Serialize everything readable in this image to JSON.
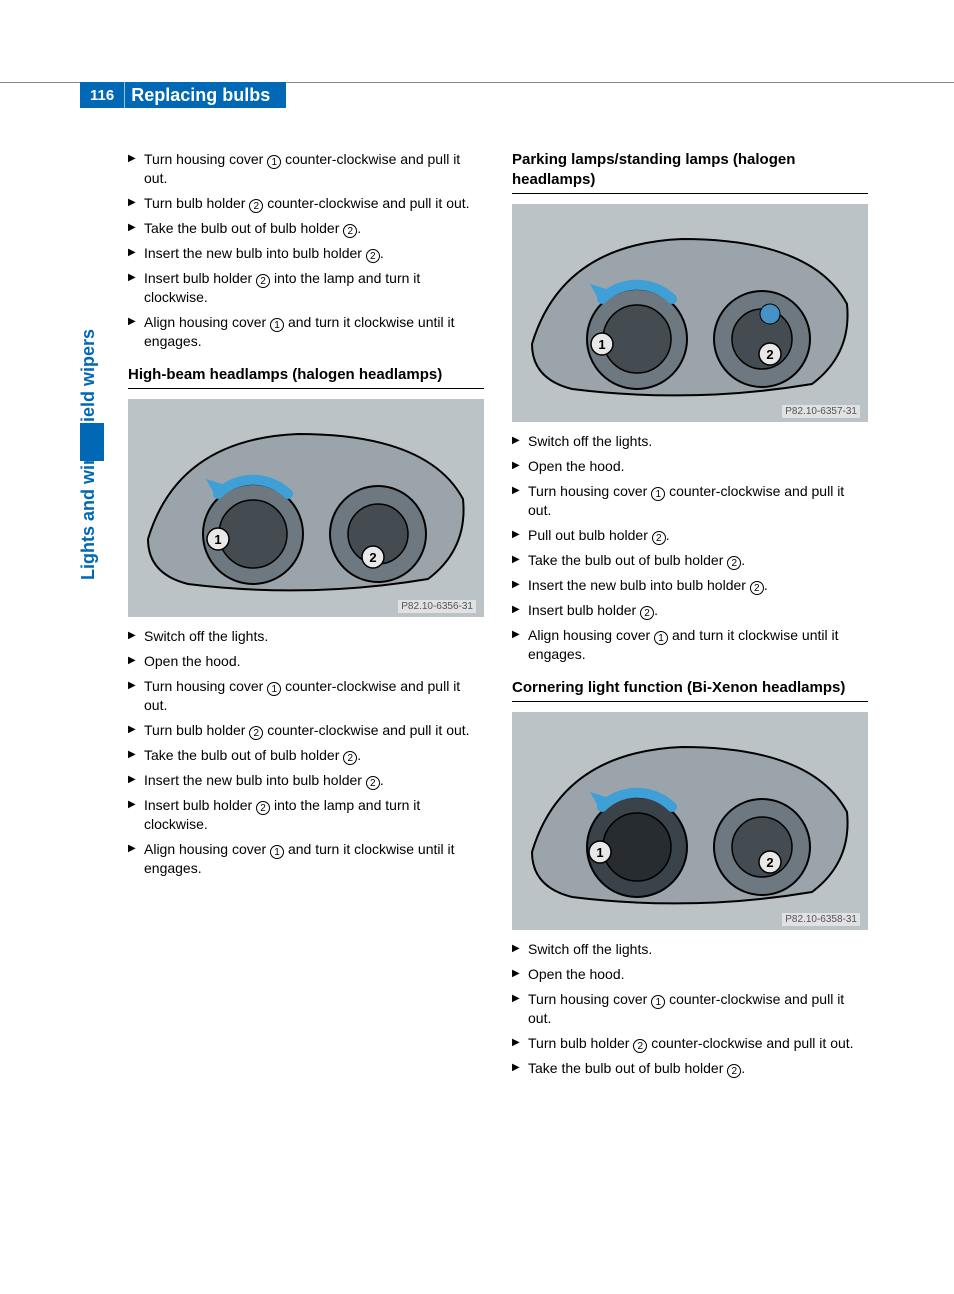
{
  "page_number": "116",
  "page_title": "Replacing bulbs",
  "side_label": "Lights and windshield wipers",
  "ref1": "1",
  "ref2": "2",
  "sections": {
    "top_left_steps": [
      {
        "pre": "Turn housing cover ",
        "ref": "1",
        "post": " counter-clockwise and pull it out."
      },
      {
        "pre": "Turn bulb holder ",
        "ref": "2",
        "post": " counter-clockwise and pull it out."
      },
      {
        "pre": "Take the bulb out of bulb holder ",
        "ref": "2",
        "post": "."
      },
      {
        "pre": "Insert the new bulb into bulb holder ",
        "ref": "2",
        "post": "."
      },
      {
        "pre": "Insert bulb holder ",
        "ref": "2",
        "post": " into the lamp and turn it clockwise."
      },
      {
        "pre": "Align housing cover ",
        "ref": "1",
        "post": " and turn it clockwise until it engages."
      }
    ],
    "high_beam": {
      "title": "High-beam headlamps (halogen headlamps)",
      "fig_caption": "P82.10-6356-31",
      "steps": [
        {
          "pre": "Switch off the lights.",
          "ref": "",
          "post": ""
        },
        {
          "pre": "Open the hood.",
          "ref": "",
          "post": ""
        },
        {
          "pre": "Turn housing cover ",
          "ref": "1",
          "post": " counter-clockwise and pull it out."
        },
        {
          "pre": "Turn bulb holder ",
          "ref": "2",
          "post": " counter-clockwise and pull it out."
        },
        {
          "pre": "Take the bulb out of bulb holder ",
          "ref": "2",
          "post": "."
        },
        {
          "pre": "Insert the new bulb into bulb holder ",
          "ref": "2",
          "post": "."
        },
        {
          "pre": "Insert bulb holder ",
          "ref": "2",
          "post": " into the lamp and turn it clockwise."
        },
        {
          "pre": "Align housing cover ",
          "ref": "1",
          "post": " and turn it clockwise until it engages."
        }
      ]
    },
    "parking": {
      "title": "Parking lamps/standing lamps (halogen headlamps)",
      "fig_caption": "P82.10-6357-31",
      "steps": [
        {
          "pre": "Switch off the lights.",
          "ref": "",
          "post": ""
        },
        {
          "pre": "Open the hood.",
          "ref": "",
          "post": ""
        },
        {
          "pre": "Turn housing cover ",
          "ref": "1",
          "post": " counter-clockwise and pull it out."
        },
        {
          "pre": "Pull out bulb holder ",
          "ref": "2",
          "post": "."
        },
        {
          "pre": "Take the bulb out of bulb holder ",
          "ref": "2",
          "post": "."
        },
        {
          "pre": "Insert the new bulb into bulb holder ",
          "ref": "2",
          "post": "."
        },
        {
          "pre": "Insert bulb holder ",
          "ref": "2",
          "post": "."
        },
        {
          "pre": "Align housing cover ",
          "ref": "1",
          "post": " and turn it clockwise until it engages."
        }
      ]
    },
    "cornering": {
      "title": "Cornering light function (Bi-Xenon headlamps)",
      "fig_caption": "P82.10-6358-31",
      "steps": [
        {
          "pre": "Switch off the lights.",
          "ref": "",
          "post": ""
        },
        {
          "pre": "Open the hood.",
          "ref": "",
          "post": ""
        },
        {
          "pre": "Turn housing cover ",
          "ref": "1",
          "post": " counter-clockwise and pull it out."
        },
        {
          "pre": "Turn bulb holder ",
          "ref": "2",
          "post": " counter-clockwise and pull it out."
        },
        {
          "pre": "Take the bulb out of bulb holder ",
          "ref": "2",
          "post": "."
        }
      ]
    }
  },
  "figure_style": {
    "background": "#bcc3c7",
    "outline_color": "#000000",
    "arrow_color": "#3ea0d6",
    "ref_fill": "#e8e8e8",
    "ref_stroke": "#000000",
    "highlight": "#4691c6"
  }
}
